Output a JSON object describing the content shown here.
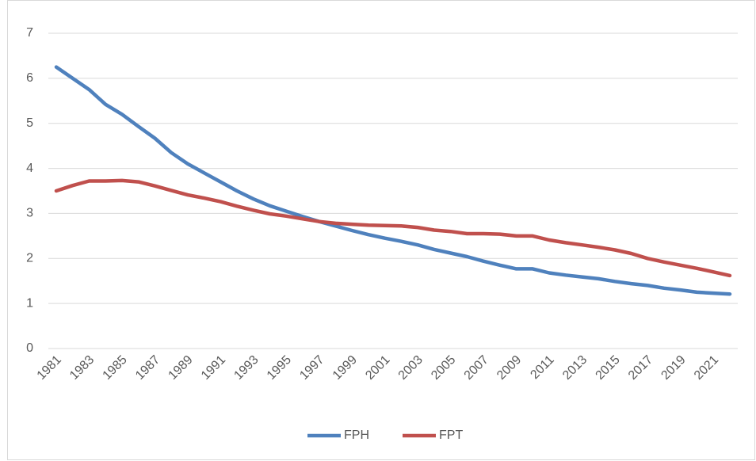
{
  "chart_data": {
    "type": "line",
    "categories": [
      "1981",
      null,
      "1983",
      null,
      "1985",
      null,
      "1987",
      null,
      "1989",
      null,
      "1991",
      null,
      "1993",
      null,
      "1995",
      null,
      "1997",
      null,
      "1999",
      null,
      "2001",
      null,
      "2003",
      null,
      "2005",
      null,
      "2007",
      null,
      "2009",
      null,
      "2011",
      null,
      "2013",
      null,
      "2015",
      null,
      "2017",
      null,
      "2019",
      null,
      "2021",
      null
    ],
    "series": [
      {
        "name": "FPH",
        "color": "#4f81bd",
        "values": [
          6.25,
          6.0,
          5.75,
          5.42,
          5.2,
          4.93,
          4.67,
          4.35,
          4.1,
          3.9,
          3.7,
          3.5,
          3.32,
          3.17,
          3.05,
          2.93,
          2.82,
          2.72,
          2.62,
          2.53,
          2.45,
          2.38,
          2.3,
          2.2,
          2.12,
          2.04,
          1.94,
          1.85,
          1.77,
          1.77,
          1.68,
          1.63,
          1.59,
          1.55,
          1.49,
          1.44,
          1.4,
          1.34,
          1.3,
          1.25,
          1.23,
          1.21
        ]
      },
      {
        "name": "FPT",
        "color": "#c0504d",
        "values": [
          3.5,
          3.62,
          3.72,
          3.72,
          3.73,
          3.7,
          3.61,
          3.51,
          3.41,
          3.34,
          3.26,
          3.16,
          3.07,
          2.99,
          2.94,
          2.88,
          2.82,
          2.78,
          2.76,
          2.74,
          2.73,
          2.72,
          2.69,
          2.63,
          2.6,
          2.55,
          2.55,
          2.54,
          2.5,
          2.5,
          2.41,
          2.35,
          2.3,
          2.25,
          2.19,
          2.11,
          2.0,
          1.92,
          1.85,
          1.78,
          1.7,
          1.62
        ]
      }
    ],
    "ylim": [
      0,
      7
    ],
    "yticks": [
      0,
      1,
      2,
      3,
      4,
      5,
      6,
      7
    ],
    "grid": true,
    "legend": "bottom"
  }
}
